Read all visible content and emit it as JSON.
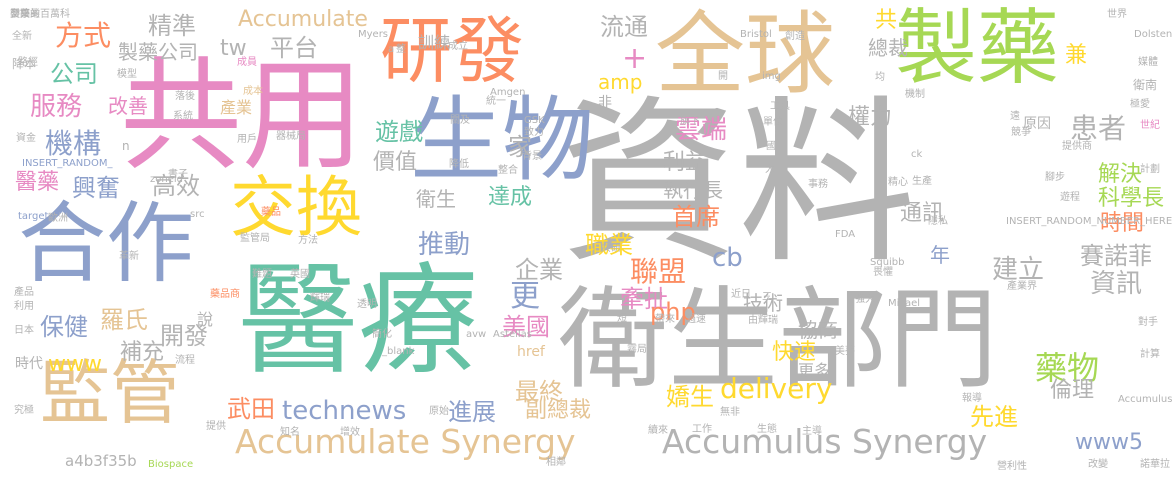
{
  "palette": {
    "gray": "#b3b3b3",
    "green": "#66c2a5",
    "orange": "#fc8d62",
    "blue": "#8da0cb",
    "pink": "#e78ac3",
    "lime": "#a6d854",
    "yellow": "#ffd92f",
    "tan": "#e5c494"
  },
  "words": [
    {
      "text": "資料",
      "color": "gray"
    },
    {
      "text": "衛生部門",
      "color": "gray"
    },
    {
      "text": "醫療",
      "color": "green"
    },
    {
      "text": "共用",
      "color": "pink"
    },
    {
      "text": "全球",
      "color": "tan"
    },
    {
      "text": "製藥",
      "color": "lime"
    },
    {
      "text": "生物",
      "color": "blue"
    },
    {
      "text": "研發",
      "color": "orange"
    },
    {
      "text": "合作",
      "color": "blue"
    },
    {
      "text": "交換",
      "color": "yellow"
    },
    {
      "text": "監管",
      "color": "tan"
    },
    {
      "text": "Accumulate Synergy",
      "color": "tan"
    },
    {
      "text": "Accumulus Synergy",
      "color": "gray"
    },
    {
      "text": "Accumulate",
      "color": "tan"
    },
    {
      "text": "精準",
      "color": "gray"
    },
    {
      "text": "製藥公司",
      "color": "gray"
    },
    {
      "text": "方式",
      "color": "orange"
    },
    {
      "text": "公司",
      "color": "green"
    },
    {
      "text": "服務",
      "color": "pink"
    },
    {
      "text": "機構",
      "color": "blue"
    },
    {
      "text": "醫藥",
      "color": "pink"
    },
    {
      "text": "興奮",
      "color": "blue"
    },
    {
      "text": "改善",
      "color": "pink"
    },
    {
      "text": "高效",
      "color": "gray"
    },
    {
      "text": "tw",
      "color": "gray"
    },
    {
      "text": "平台",
      "color": "gray"
    },
    {
      "text": "流通",
      "color": "gray"
    },
    {
      "text": "+",
      "color": "pink"
    },
    {
      "text": "amp",
      "color": "yellow"
    },
    {
      "text": "家",
      "color": "gray"
    },
    {
      "text": "遊戲",
      "color": "green"
    },
    {
      "text": "價值",
      "color": "gray"
    },
    {
      "text": "衛生",
      "color": "gray"
    },
    {
      "text": "達成",
      "color": "green"
    },
    {
      "text": "推動",
      "color": "blue"
    },
    {
      "text": "企業",
      "color": "gray"
    },
    {
      "text": "更",
      "color": "blue"
    },
    {
      "text": "雲端",
      "color": "pink"
    },
    {
      "text": "利益",
      "color": "gray"
    },
    {
      "text": "執行長",
      "color": "gray"
    },
    {
      "text": "首席",
      "color": "orange"
    },
    {
      "text": "職業",
      "color": "yellow"
    },
    {
      "text": "聯盟",
      "color": "orange"
    },
    {
      "text": "牽扯",
      "color": "pink"
    },
    {
      "text": "權力",
      "color": "gray"
    },
    {
      "text": "共",
      "color": "yellow"
    },
    {
      "text": "總裁",
      "color": "gray"
    },
    {
      "text": "兼",
      "color": "yellow"
    },
    {
      "text": "患者",
      "color": "gray"
    },
    {
      "text": "解決",
      "color": "lime"
    },
    {
      "text": "科學長",
      "color": "lime"
    },
    {
      "text": "時間",
      "color": "orange"
    },
    {
      "text": "賽諾菲",
      "color": "gray"
    },
    {
      "text": "資訊",
      "color": "gray"
    },
    {
      "text": "建立",
      "color": "gray"
    },
    {
      "text": "通訊",
      "color": "gray"
    },
    {
      "text": "cb",
      "color": "blue"
    },
    {
      "text": "年",
      "color": "blue"
    },
    {
      "text": "php",
      "color": "orange"
    },
    {
      "text": "技術",
      "color": "gray"
    },
    {
      "text": "協商",
      "color": "gray"
    },
    {
      "text": "美國",
      "color": "pink"
    },
    {
      "text": "快速",
      "color": "yellow"
    },
    {
      "text": "更多",
      "color": "gray"
    },
    {
      "text": "delivery",
      "color": "yellow"
    },
    {
      "text": "最終",
      "color": "tan"
    },
    {
      "text": "嬌生",
      "color": "yellow"
    },
    {
      "text": "副總裁",
      "color": "tan"
    },
    {
      "text": "藥物",
      "color": "lime"
    },
    {
      "text": "倫理",
      "color": "gray"
    },
    {
      "text": "先進",
      "color": "yellow"
    },
    {
      "text": "進展",
      "color": "blue"
    },
    {
      "text": "technews",
      "color": "blue"
    },
    {
      "text": "武田",
      "color": "orange"
    },
    {
      "text": "保健",
      "color": "blue"
    },
    {
      "text": "羅氏",
      "color": "tan"
    },
    {
      "text": "開發",
      "color": "gray"
    },
    {
      "text": "補充",
      "color": "gray"
    },
    {
      "text": "www",
      "color": "yellow"
    },
    {
      "text": "說",
      "color": "gray"
    },
    {
      "text": "href",
      "color": "tan"
    },
    {
      "text": "www5",
      "color": "blue"
    },
    {
      "text": "a4b3f35b",
      "color": "gray"
    },
    {
      "text": "降本",
      "color": "gray"
    },
    {
      "text": "全新",
      "color": "gray"
    },
    {
      "text": "產業",
      "color": "tan"
    },
    {
      "text": "系統",
      "color": "gray"
    },
    {
      "text": "模型",
      "color": "gray"
    },
    {
      "text": "落後",
      "color": "gray"
    },
    {
      "text": "成員",
      "color": "pink"
    },
    {
      "text": "成本",
      "color": "tan"
    },
    {
      "text": "路徑",
      "color": "gray"
    },
    {
      "text": "用戶",
      "color": "gray"
    },
    {
      "text": "器械局",
      "color": "gray"
    },
    {
      "text": "資金",
      "color": "gray"
    },
    {
      "text": "INSERT_RANDOM_",
      "color": "blue"
    },
    {
      "text": "zoneid",
      "color": "gray"
    },
    {
      "text": "target",
      "color": "blue"
    },
    {
      "text": "歐洲",
      "color": "gray"
    },
    {
      "text": "src",
      "color": "gray"
    },
    {
      "text": "藥品",
      "color": "orange"
    },
    {
      "text": "監管局",
      "color": "gray"
    },
    {
      "text": "方法",
      "color": "gray"
    },
    {
      "text": "難題",
      "color": "gray"
    },
    {
      "text": "英國",
      "color": "gray"
    },
    {
      "text": "輝瑞",
      "color": "gray"
    },
    {
      "text": "透明",
      "color": "gray"
    },
    {
      "text": "簡化",
      "color": "gray"
    },
    {
      "text": "avw",
      "color": "gray"
    },
    {
      "text": "Astellas",
      "color": "gray"
    },
    {
      "text": "產品",
      "color": "gray"
    },
    {
      "text": "藥品商",
      "color": "orange"
    },
    {
      "text": "利用",
      "color": "gray"
    },
    {
      "text": "日本",
      "color": "gray"
    },
    {
      "text": "時代",
      "color": "gray"
    },
    {
      "text": "流程",
      "color": "gray"
    },
    {
      "text": "_blank",
      "color": "gray"
    },
    {
      "text": "究極",
      "color": "gray"
    },
    {
      "text": "知名",
      "color": "gray"
    },
    {
      "text": "增效",
      "color": "gray"
    },
    {
      "text": "提供",
      "color": "gray"
    },
    {
      "text": "原始",
      "color": "gray"
    },
    {
      "text": "相鄰",
      "color": "gray"
    },
    {
      "text": "Biospace",
      "color": "lime"
    },
    {
      "text": "續來",
      "color": "gray"
    },
    {
      "text": "工作",
      "color": "gray"
    },
    {
      "text": "生態",
      "color": "gray"
    },
    {
      "text": "無非",
      "color": "gray"
    },
    {
      "text": "關及",
      "color": "gray"
    },
    {
      "text": "GSK",
      "color": "gray"
    },
    {
      "text": "Amgen",
      "color": "gray"
    },
    {
      "text": "Myers",
      "color": "gray"
    },
    {
      "text": "Squibb",
      "color": "gray"
    },
    {
      "text": "Mikael",
      "color": "gray"
    },
    {
      "text": "INSERT_RANDOM_NUMBER_HERE",
      "color": "gray"
    },
    {
      "text": "FDA",
      "color": "gray"
    },
    {
      "text": "產業界",
      "color": "gray"
    },
    {
      "text": "事務",
      "color": "gray"
    },
    {
      "text": "世界",
      "color": "gray"
    },
    {
      "text": "Dolsten",
      "color": "gray"
    },
    {
      "text": "Accumulus",
      "color": "gray"
    },
    {
      "text": "Bristol",
      "color": "gray"
    },
    {
      "text": "成立",
      "color": "gray"
    },
    {
      "text": "統一",
      "color": "gray"
    },
    {
      "text": "致力",
      "color": "gray"
    },
    {
      "text": "背景",
      "color": "gray"
    },
    {
      "text": "整合",
      "color": "gray"
    },
    {
      "text": "降低",
      "color": "gray"
    },
    {
      "text": "旗下",
      "color": "gray"
    },
    {
      "text": "img",
      "color": "gray"
    },
    {
      "text": "單位",
      "color": "gray"
    },
    {
      "text": "競爭",
      "color": "gray"
    },
    {
      "text": "原因",
      "color": "gray"
    },
    {
      "text": "ck",
      "color": "gray"
    },
    {
      "text": "生產",
      "color": "gray"
    },
    {
      "text": "隱私",
      "color": "gray"
    },
    {
      "text": "畏懼",
      "color": "gray"
    },
    {
      "text": "近日",
      "color": "gray"
    },
    {
      "text": "由輝瑞",
      "color": "gray"
    },
    {
      "text": "美夢",
      "color": "gray"
    },
    {
      "text": "報導",
      "color": "gray"
    },
    {
      "text": "主導",
      "color": "gray"
    },
    {
      "text": "營利性",
      "color": "gray"
    },
    {
      "text": "改變",
      "color": "gray"
    },
    {
      "text": "諾華拉",
      "color": "gray"
    },
    {
      "text": "計算",
      "color": "gray"
    },
    {
      "text": "對手",
      "color": "gray"
    },
    {
      "text": "腳步",
      "color": "gray"
    },
    {
      "text": "訓練",
      "color": "gray"
    },
    {
      "text": "整",
      "color": "gray"
    },
    {
      "text": "非",
      "color": "gray"
    },
    {
      "text": "n",
      "color": "gray"
    },
    {
      "text": "a",
      "color": "gray"
    },
    {
      "text": "創造",
      "color": "gray"
    },
    {
      "text": "衛南",
      "color": "gray"
    },
    {
      "text": "極愛",
      "color": "gray"
    },
    {
      "text": "世紀",
      "color": "pink"
    },
    {
      "text": "計劃",
      "color": "gray"
    },
    {
      "text": "國",
      "color": "gray"
    },
    {
      "text": "大",
      "color": "gray"
    },
    {
      "text": "開",
      "color": "gray"
    },
    {
      "text": "遠",
      "color": "gray"
    },
    {
      "text": "短",
      "color": "gray"
    },
    {
      "text": "提供商",
      "color": "gray"
    },
    {
      "text": "遊程",
      "color": "gray"
    },
    {
      "text": "帶來",
      "color": "gray"
    },
    {
      "text": "過速",
      "color": "gray"
    },
    {
      "text": "三",
      "color": "gray"
    },
    {
      "text": "強大",
      "color": "gray"
    },
    {
      "text": "機制",
      "color": "gray"
    },
    {
      "text": "精心",
      "color": "gray"
    },
    {
      "text": "媒體",
      "color": "gray"
    },
    {
      "text": "共研",
      "color": "gray"
    },
    {
      "text": "革新",
      "color": "gray"
    },
    {
      "text": "書子",
      "color": "gray"
    },
    {
      "text": "工具",
      "color": "gray"
    },
    {
      "text": "均",
      "color": "gray"
    },
    {
      "text": "霧局",
      "color": "gray"
    },
    {
      "text": "交接",
      "color": "gray"
    },
    {
      "text": "製藥業",
      "color": "gray"
    },
    {
      "text": "帶來的百萬科",
      "color": "gray"
    }
  ]
}
